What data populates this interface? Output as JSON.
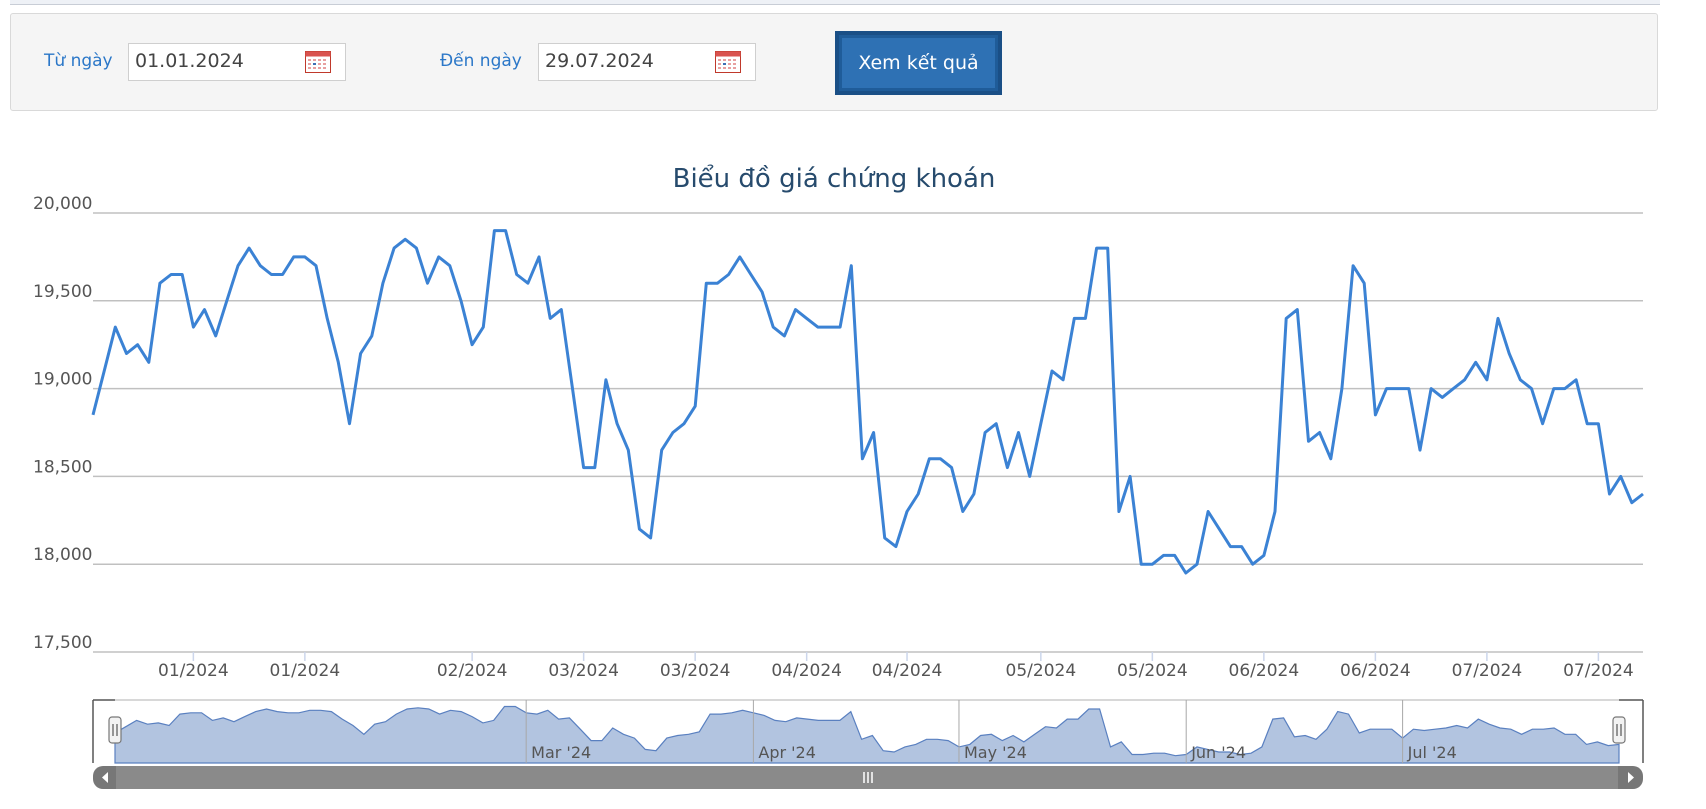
{
  "filter": {
    "from_label": "Từ ngày",
    "from_value": "01.01.2024",
    "to_label": "Đến ngày",
    "to_value": "29.07.2024",
    "submit_label": "Xem kết quả"
  },
  "chart_data": {
    "type": "line",
    "title": "Biểu đồ giá chứng khoán",
    "ylim": [
      17500,
      20000
    ],
    "yticks": [
      "20,000",
      "19,500",
      "19,000",
      "18,500",
      "18,000",
      "17,500"
    ],
    "ytick_values": [
      20000,
      19500,
      19000,
      18500,
      18000,
      17500
    ],
    "grid": true,
    "line_color": "#3b82d4",
    "x_tick_labels": [
      {
        "label": "01/2024",
        "index": 9
      },
      {
        "label": "01/2024",
        "index": 19
      },
      {
        "label": "02/2024",
        "index": 34
      },
      {
        "label": "03/2024",
        "index": 44
      },
      {
        "label": "03/2024",
        "index": 54
      },
      {
        "label": "04/2024",
        "index": 64
      },
      {
        "label": "04/2024",
        "index": 73
      },
      {
        "label": "05/2024",
        "index": 85
      },
      {
        "label": "05/2024",
        "index": 95
      },
      {
        "label": "06/2024",
        "index": 105
      },
      {
        "label": "06/2024",
        "index": 115
      },
      {
        "label": "07/2024",
        "index": 125
      },
      {
        "label": "07/2024",
        "index": 135
      }
    ],
    "values": [
      18850,
      19100,
      19350,
      19200,
      19250,
      19150,
      19600,
      19650,
      19650,
      19350,
      19450,
      19300,
      19500,
      19700,
      19800,
      19700,
      19650,
      19650,
      19750,
      19750,
      19700,
      19400,
      19150,
      18800,
      19200,
      19300,
      19600,
      19800,
      19850,
      19800,
      19600,
      19750,
      19700,
      19500,
      19250,
      19350,
      19900,
      19900,
      19650,
      19600,
      19750,
      19400,
      19450,
      19000,
      18550,
      18550,
      19050,
      18800,
      18650,
      18200,
      18150,
      18650,
      18750,
      18800,
      18900,
      19600,
      19600,
      19650,
      19750,
      19650,
      19550,
      19350,
      19300,
      19450,
      19400,
      19350,
      19350,
      19350,
      19700,
      18600,
      18750,
      18150,
      18100,
      18300,
      18400,
      18600,
      18600,
      18550,
      18300,
      18400,
      18750,
      18800,
      18550,
      18750,
      18500,
      18800,
      19100,
      19050,
      19400,
      19400,
      19800,
      19800,
      18300,
      18500,
      18000,
      18000,
      18050,
      18050,
      17950,
      18000,
      18300,
      18200,
      18100,
      18100,
      18000,
      18050,
      18300,
      19400,
      19450,
      18700,
      18750,
      18600,
      19000,
      19700,
      19600,
      18850,
      19000,
      19000,
      19000,
      18650,
      19000,
      18950,
      19000,
      19050,
      19150,
      19050,
      19400,
      19200,
      19050,
      19000,
      18800,
      19000,
      19000,
      19050,
      18800,
      18800,
      18400,
      18500,
      18350,
      18400
    ],
    "navigator": {
      "month_labels": [
        {
          "label": "Mar '24",
          "index": 38
        },
        {
          "label": "Apr '24",
          "index": 59
        },
        {
          "label": "May '24",
          "index": 78
        },
        {
          "label": "Jun '24",
          "index": 99
        },
        {
          "label": "Jul '24",
          "index": 119
        }
      ]
    }
  }
}
